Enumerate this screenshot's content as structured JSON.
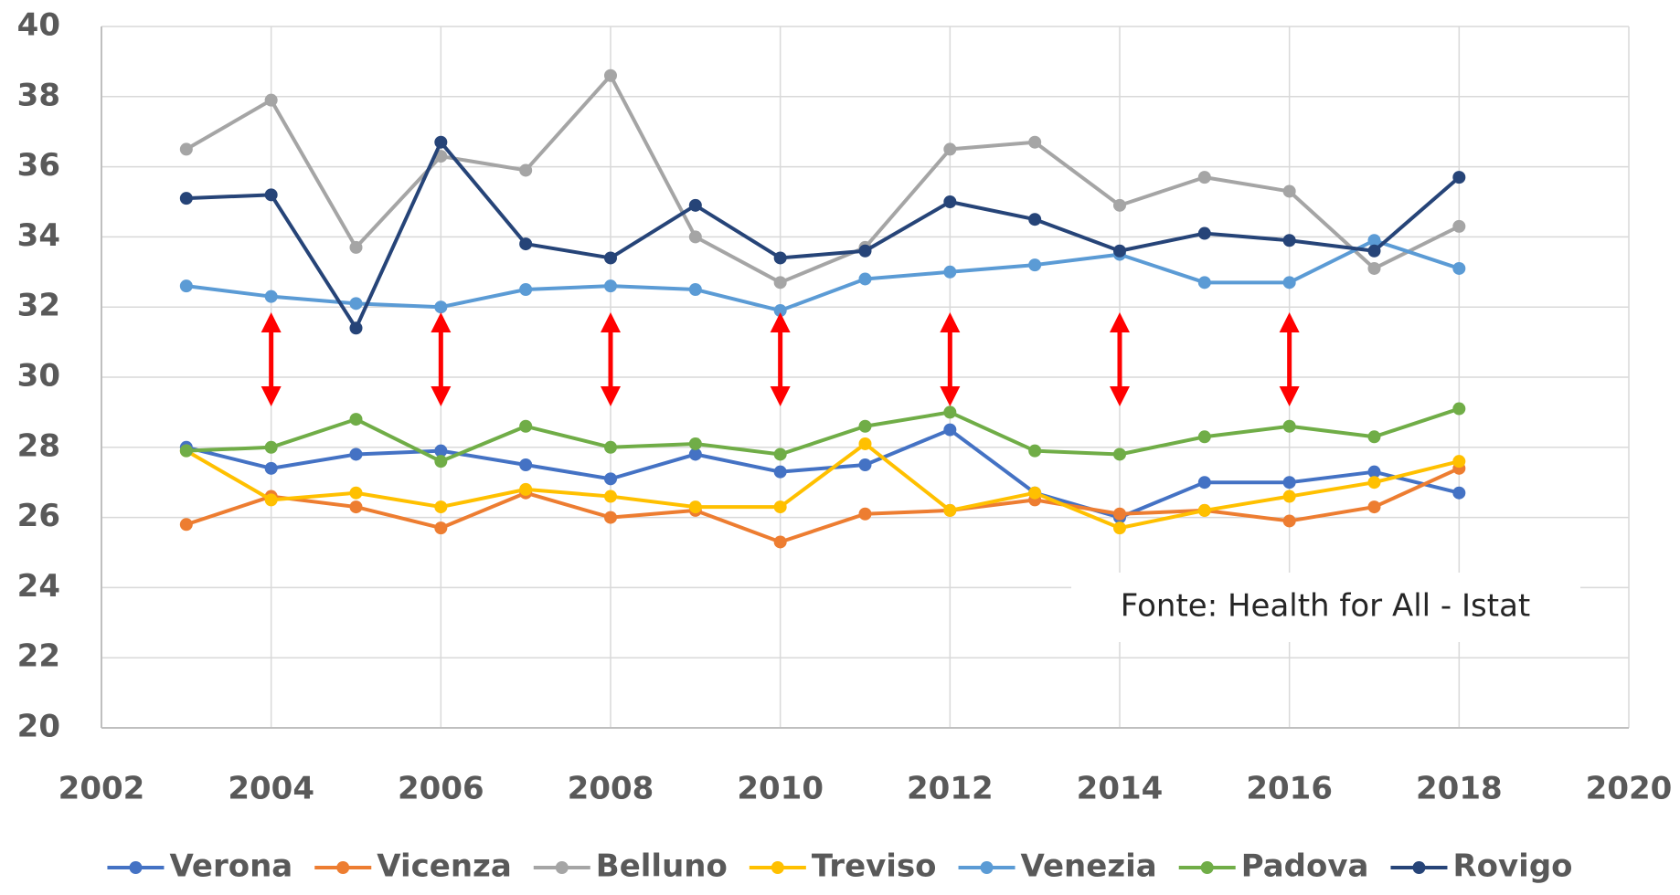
{
  "chart_data": {
    "type": "line",
    "x": [
      2003,
      2004,
      2005,
      2006,
      2007,
      2008,
      2009,
      2010,
      2011,
      2012,
      2013,
      2014,
      2015,
      2016,
      2017,
      2018
    ],
    "series": [
      {
        "name": "Verona",
        "color": "#4472c4",
        "values": [
          28.0,
          27.4,
          27.8,
          27.9,
          27.5,
          27.1,
          27.8,
          27.3,
          27.5,
          28.5,
          26.7,
          26.0,
          27.0,
          27.0,
          27.3,
          26.7
        ]
      },
      {
        "name": "Vicenza",
        "color": "#ed7d31",
        "values": [
          25.8,
          26.6,
          26.3,
          25.7,
          26.7,
          26.0,
          26.2,
          25.3,
          26.1,
          26.2,
          26.5,
          26.1,
          26.2,
          25.9,
          26.3,
          27.4
        ]
      },
      {
        "name": "Belluno",
        "color": "#a5a5a5",
        "values": [
          36.5,
          37.9,
          33.7,
          36.3,
          35.9,
          38.6,
          34.0,
          32.7,
          33.7,
          36.5,
          36.7,
          34.9,
          35.7,
          35.3,
          33.1,
          34.3
        ]
      },
      {
        "name": "Treviso",
        "color": "#ffc000",
        "values": [
          27.9,
          26.5,
          26.7,
          26.3,
          26.8,
          26.6,
          26.3,
          26.3,
          28.1,
          26.2,
          26.7,
          25.7,
          26.2,
          26.6,
          27.0,
          27.6
        ]
      },
      {
        "name": "Venezia",
        "color": "#5b9bd5",
        "values": [
          32.6,
          32.3,
          32.1,
          32.0,
          32.5,
          32.6,
          32.5,
          31.9,
          32.8,
          33.0,
          33.2,
          33.5,
          32.7,
          32.7,
          33.9,
          33.1
        ]
      },
      {
        "name": "Padova",
        "color": "#70ad47",
        "values": [
          27.9,
          28.0,
          28.8,
          27.6,
          28.6,
          28.0,
          28.1,
          27.8,
          28.6,
          29.0,
          27.9,
          27.8,
          28.3,
          28.6,
          28.3,
          29.1
        ]
      },
      {
        "name": "Rovigo",
        "color": "#264478",
        "values": [
          35.1,
          35.2,
          31.4,
          36.7,
          33.8,
          33.4,
          34.9,
          33.4,
          33.6,
          35.0,
          34.5,
          33.6,
          34.1,
          33.9,
          33.6,
          35.7
        ]
      }
    ],
    "xlim": [
      2002,
      2020
    ],
    "xticks": [
      2002,
      2004,
      2006,
      2008,
      2010,
      2012,
      2014,
      2016,
      2018,
      2020
    ],
    "ylim": [
      20,
      40
    ],
    "yticks": [
      20,
      22,
      24,
      26,
      28,
      30,
      32,
      34,
      36,
      38,
      40
    ],
    "grid": true,
    "legend": "bottom",
    "annotation": "Fonte: Health for All - Istat"
  }
}
